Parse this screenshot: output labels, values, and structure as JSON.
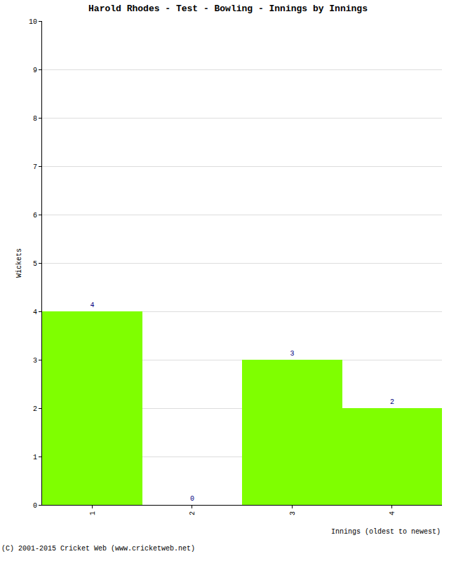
{
  "chart_data": {
    "type": "bar",
    "title": "Harold Rhodes - Test - Bowling - Innings by Innings",
    "x_label": "Innings (oldest to newest)",
    "y_label": "Wickets",
    "categories": [
      "1",
      "2",
      "3",
      "4"
    ],
    "values": [
      4,
      0,
      3,
      2
    ],
    "color": "#7fff00",
    "ylim": [
      0,
      10
    ],
    "yticks": [
      0,
      1,
      2,
      3,
      4,
      5,
      6,
      7,
      8,
      9,
      10
    ],
    "grid": true,
    "data_labels": true,
    "annotations": [
      "(C) 2001-2015 Cricket Web (www.cricketweb.net)"
    ]
  }
}
